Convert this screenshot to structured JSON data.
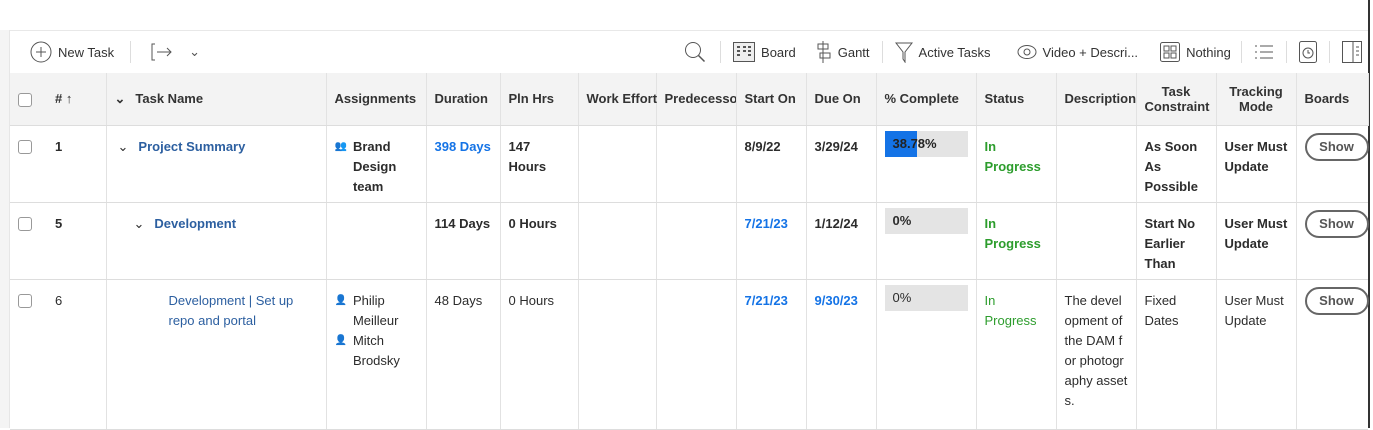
{
  "toolbar": {
    "new_task": "New Task",
    "board": "Board",
    "gantt": "Gantt",
    "filter": "Active Tasks",
    "view": "Video + Descri...",
    "grouping": "Nothing"
  },
  "columns": [
    "# ↑",
    "Task Name",
    "Assignments",
    "Duration",
    "Pln Hrs",
    "Work Effort",
    "Predecessors",
    "Start On",
    "Due On",
    "% Complete",
    "Status",
    "Description",
    "Task Constraint",
    "Tracking Mode",
    "Boards"
  ],
  "rows": [
    {
      "num": "1",
      "name": "Project Summary",
      "assign": [
        "Brand Design team"
      ],
      "duration": "398 Days",
      "hours": "147 Hours",
      "work": "",
      "pred": "",
      "start": "8/9/22",
      "due": "3/29/24",
      "pct_label": "38.78%",
      "pct": 38.78,
      "status": "In Progress",
      "desc": "",
      "constraint": "As Soon As Possible",
      "tracking": "User Must Update",
      "boards": "Show"
    },
    {
      "num": "5",
      "name": "Development",
      "assign": [],
      "duration": "114 Days",
      "hours": "0 Hours",
      "work": "",
      "pred": "",
      "start": "7/21/23",
      "due": "1/12/24",
      "pct_label": "0%",
      "pct": 0,
      "status": "In Progress",
      "desc": "",
      "constraint": "Start No Earlier Than",
      "tracking": "User Must Update",
      "boards": "Show"
    },
    {
      "num": "6",
      "name": "Development | Set up repo and portal",
      "assign": [
        "Philip Meilleur",
        "Mitch Brodsky"
      ],
      "duration": "48 Days",
      "hours": "0 Hours",
      "work": "",
      "pred": "",
      "start": "7/21/23",
      "due": "9/30/23",
      "pct_label": "0%",
      "pct": 0,
      "status": "In Progress",
      "desc": "The development of the DAM for photography assets.",
      "constraint": "Fixed Dates",
      "tracking": "User Must Update",
      "boards": "Show"
    }
  ],
  "colors": {
    "accent": "#1473e6",
    "status": "#2d9d2d",
    "link": "#2c5fa0"
  }
}
